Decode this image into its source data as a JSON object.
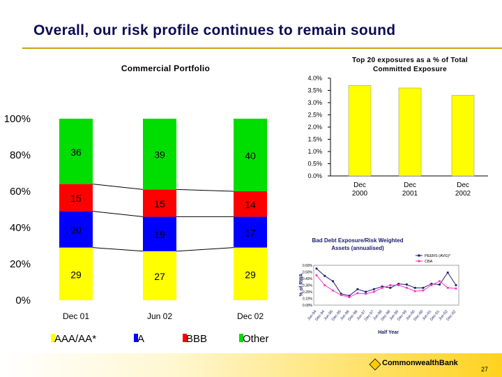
{
  "page": {
    "title": "Overall, our risk profile continues to remain sound",
    "bank_name": "CommonwealthBank",
    "page_number": "27",
    "colors": {
      "title": "#0b0b55",
      "accent": "#c9a21a",
      "footer": "#ffd21f"
    }
  },
  "chart_data": [
    {
      "type": "bar",
      "subtype": "stacked-100",
      "title": "Commercial Portfolio",
      "categories": [
        "Dec 01",
        "Jun 02",
        "Dec 02"
      ],
      "yticks": [
        "0%",
        "20%",
        "40%",
        "60%",
        "80%",
        "100%"
      ],
      "ylim": [
        0,
        100
      ],
      "series": [
        {
          "name": "AAA/AA*",
          "color": "#ffff00",
          "values": [
            29,
            27,
            29
          ]
        },
        {
          "name": "A",
          "color": "#0000ff",
          "values": [
            20,
            19,
            17
          ]
        },
        {
          "name": "BBB",
          "color": "#ff0000",
          "values": [
            15,
            15,
            14
          ]
        },
        {
          "name": "Other",
          "color": "#00dd00",
          "values": [
            36,
            39,
            40
          ]
        }
      ],
      "legend": "bottom"
    },
    {
      "type": "bar",
      "title": "Top 20 exposures as a % of Total Committed Exposure",
      "categories": [
        "Dec 2000",
        "Dec 2001",
        "Dec 2002"
      ],
      "values": [
        3.7,
        3.6,
        3.3
      ],
      "yticks": [
        "0.0%",
        "0.5%",
        "1.0%",
        "1.5%",
        "2.0%",
        "2.5%",
        "3.0%",
        "3.5%",
        "4.0%"
      ],
      "ylim": [
        0,
        4.0
      ],
      "color": "#ffff00"
    },
    {
      "type": "line",
      "title": "Bad Debt Exposure/Risk Weighted Assets (annualised)",
      "xlabel": "Half Year",
      "ylabel": "% of RWA",
      "x": [
        "Jun-94",
        "Dec-94",
        "Jun-95",
        "Dec-95",
        "Jun-96",
        "Dec-96",
        "Jun-97",
        "Dec-97",
        "Jun-98",
        "Dec-98",
        "Jun-99",
        "Dec-99",
        "Jun-00",
        "Dec-00",
        "Jun-01",
        "Dec-01",
        "Jun-02",
        "Dec-02"
      ],
      "yticks": [
        "0.00%",
        "0.10%",
        "0.20%",
        "0.30%",
        "0.40%",
        "0.50%",
        "0.60%"
      ],
      "ylim": [
        0,
        0.6
      ],
      "series": [
        {
          "name": "PEERS (AVG)*",
          "color": "#1a1a6b",
          "values": [
            0.55,
            0.44,
            0.36,
            0.17,
            0.14,
            0.24,
            0.2,
            0.24,
            0.28,
            0.26,
            0.32,
            0.31,
            0.26,
            0.26,
            0.32,
            0.31,
            0.49,
            0.3
          ]
        },
        {
          "name": "CBA",
          "color": "#ff33cc",
          "values": [
            0.45,
            0.3,
            0.22,
            0.15,
            0.12,
            0.18,
            0.17,
            0.2,
            0.26,
            0.3,
            0.3,
            0.26,
            0.21,
            0.22,
            0.3,
            0.36,
            0.26,
            0.25
          ]
        }
      ],
      "legend": "top-right"
    }
  ]
}
